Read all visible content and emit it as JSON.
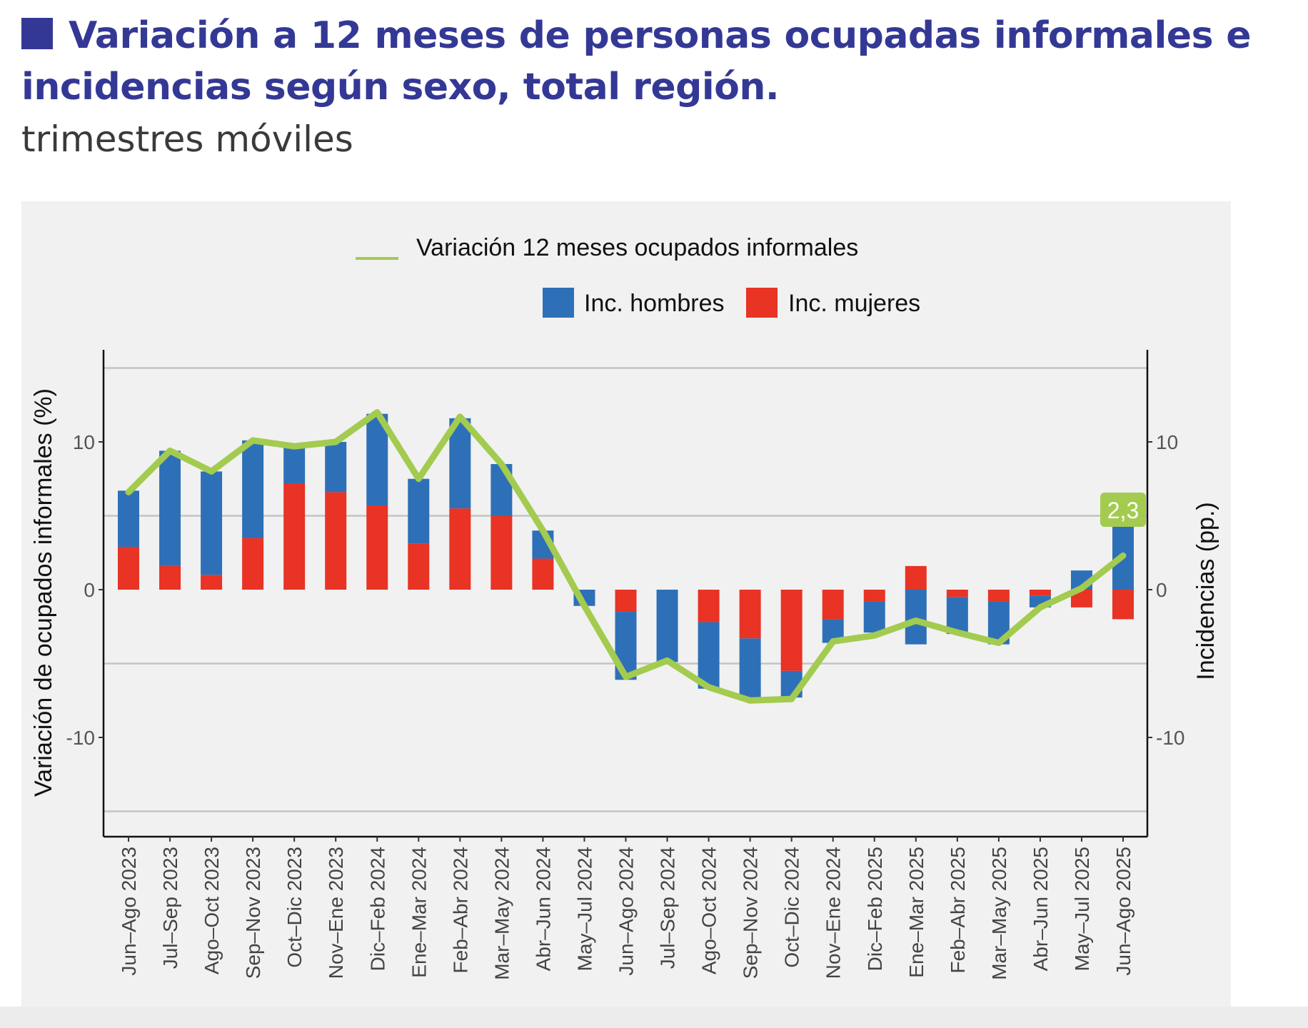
{
  "header": {
    "title": "Variación a 12 meses de personas ocupadas informales e incidencias según sexo, total región.",
    "subtitle": "trimestres móviles"
  },
  "colors": {
    "title": "#343895",
    "hombres": "#2e70b8",
    "mujeres": "#e83325",
    "line": "#a3cb4f",
    "grid": "#c4c4c4",
    "panel": "#f1f1f1"
  },
  "chart_data": {
    "type": "bar",
    "title": "Variación a 12 meses de personas ocupadas informales e incidencias según sexo, total región.",
    "subtitle": "trimestres móviles",
    "xlabel": "",
    "ylabel": "Variación de ocupados informales (%)",
    "ylabel_right": "Incidencias (pp.)",
    "ylim": [
      -16.5,
      16.5
    ],
    "yticks": [
      -10,
      0,
      10
    ],
    "ytick_labels": [
      "-10",
      "0",
      "10"
    ],
    "gridlines": [
      -15,
      -5,
      5,
      15
    ],
    "grid": true,
    "legend": {
      "position": "top",
      "line_label": "Variación 12 meses ocupados informales",
      "bar_labels": [
        "Inc. hombres",
        "Inc. mujeres"
      ]
    },
    "annotation": {
      "category": "Jun–Ago 2025",
      "text": "2,3"
    },
    "categories": [
      "Jun–Ago 2023",
      "Jul–Sep 2023",
      "Ago–Oct 2023",
      "Sep–Nov 2023",
      "Oct–Dic 2023",
      "Nov–Ene 2023",
      "Dic–Feb 2024",
      "Ene–Mar 2024",
      "Feb–Abr 2024",
      "Mar–May 2024",
      "Abr–Jun 2024",
      "May–Jul 2024",
      "Jun–Ago 2024",
      "Jul–Sep 2024",
      "Ago–Oct 2024",
      "Sep–Nov 2024",
      "Oct–Dic 2024",
      "Nov–Ene 2024",
      "Dic–Feb 2025",
      "Ene–Mar 2025",
      "Feb–Abr 2025",
      "Mar–May 2025",
      "Abr–Jun 2025",
      "May–Jul 2025",
      "Jun–Ago 2025"
    ],
    "series": [
      {
        "name": "Inc. hombres",
        "type": "bar",
        "stacked": true,
        "values": [
          3.8,
          7.8,
          7.0,
          6.6,
          2.6,
          3.4,
          6.2,
          4.4,
          6.1,
          3.5,
          1.9,
          -1.1,
          -4.6,
          -4.9,
          -4.5,
          -4.0,
          -1.8,
          -1.6,
          -2.1,
          -3.7,
          -2.5,
          -2.9,
          -0.8,
          1.3,
          4.3
        ]
      },
      {
        "name": "Inc. mujeres",
        "type": "bar",
        "stacked": true,
        "values": [
          2.9,
          1.6,
          1.0,
          3.5,
          7.2,
          6.6,
          5.7,
          3.1,
          5.5,
          5.0,
          2.1,
          0.0,
          -1.5,
          0.0,
          -2.2,
          -3.3,
          -5.5,
          -2.0,
          -0.8,
          1.6,
          -0.5,
          -0.8,
          -0.4,
          -1.2,
          -2.0
        ]
      },
      {
        "name": "Variación 12 meses ocupados informales",
        "type": "line",
        "values": [
          6.6,
          9.4,
          8.0,
          10.1,
          9.7,
          10.0,
          12.0,
          7.5,
          11.7,
          8.5,
          4.0,
          -1.1,
          -5.9,
          -4.8,
          -6.6,
          -7.5,
          -7.4,
          -3.5,
          -3.1,
          -2.1,
          -2.9,
          -3.6,
          -1.2,
          0.1,
          2.3
        ]
      }
    ]
  }
}
